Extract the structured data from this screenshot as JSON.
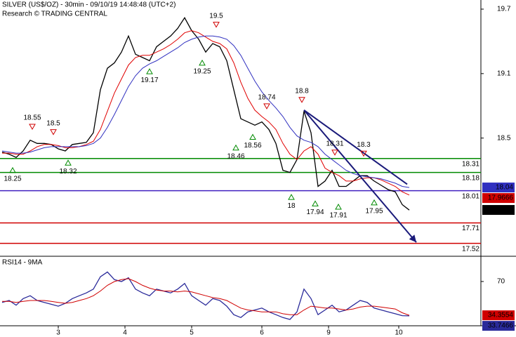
{
  "chart_data": [
    {
      "type": "line",
      "title": "SILVER (US$/OZ) - 30min - 09/10/19 14:48:48 (UTC+2)",
      "subtitle": "Research © TRADING CENTRAL",
      "xlim": [
        -0.6,
        136.4
      ],
      "ylim": [
        17.4,
        19.785
      ],
      "yticks": [
        18.5,
        19.1,
        19.7
      ],
      "x": [
        0,
        2,
        4,
        6,
        8,
        10,
        12,
        14,
        16,
        18,
        20,
        22,
        24,
        26,
        28,
        30,
        32,
        34,
        36,
        38,
        40,
        42,
        44,
        46,
        48,
        50,
        52,
        54,
        56,
        58,
        60,
        62,
        64,
        66,
        68,
        70,
        72,
        74,
        76,
        78,
        80,
        82,
        84,
        86,
        88,
        90,
        92,
        94,
        96,
        98,
        100,
        102,
        104,
        106,
        108,
        110,
        112,
        114,
        116
      ],
      "series": [
        {
          "color": "#000000",
          "values": [
            18.37,
            18.35,
            18.32,
            18.38,
            18.48,
            18.45,
            18.45,
            18.44,
            18.4,
            18.38,
            18.44,
            18.45,
            18.46,
            18.55,
            18.95,
            19.15,
            19.2,
            19.3,
            19.45,
            19.28,
            19.25,
            19.22,
            19.35,
            19.4,
            19.45,
            19.52,
            19.62,
            19.5,
            19.42,
            19.3,
            19.38,
            19.35,
            19.22,
            18.95,
            18.68,
            18.65,
            18.62,
            18.65,
            18.58,
            18.45,
            18.2,
            18.18,
            18.3,
            18.75,
            18.55,
            18.05,
            18.1,
            18.2,
            18.05,
            18.05,
            18.1,
            18.15,
            18.15,
            18.1,
            18.06,
            18.02,
            18.0,
            17.88,
            17.83
          ]
        },
        {
          "color": "#e00000",
          "values": [
            18.36,
            18.36,
            18.35,
            18.35,
            18.38,
            18.42,
            18.44,
            18.44,
            18.43,
            18.41,
            18.41,
            18.42,
            18.44,
            18.47,
            18.58,
            18.75,
            18.92,
            19.05,
            19.18,
            19.25,
            19.27,
            19.27,
            19.3,
            19.33,
            19.37,
            19.42,
            19.48,
            19.5,
            19.48,
            19.44,
            19.4,
            19.38,
            19.33,
            19.2,
            19.02,
            18.87,
            18.76,
            18.7,
            18.65,
            18.58,
            18.45,
            18.35,
            18.3,
            18.38,
            18.42,
            18.35,
            18.22,
            18.18,
            18.15,
            18.1,
            18.1,
            18.12,
            18.13,
            18.13,
            18.11,
            18.08,
            18.05,
            18.0,
            17.97
          ]
        },
        {
          "color": "#3030c0",
          "values": [
            18.38,
            18.37,
            18.36,
            18.36,
            18.37,
            18.39,
            18.41,
            18.42,
            18.42,
            18.42,
            18.42,
            18.42,
            18.43,
            18.45,
            18.5,
            18.6,
            18.72,
            18.85,
            18.98,
            19.08,
            19.15,
            19.19,
            19.22,
            19.26,
            19.3,
            19.34,
            19.39,
            19.42,
            19.44,
            19.45,
            19.45,
            19.44,
            19.42,
            19.36,
            19.27,
            19.15,
            19.03,
            18.93,
            18.85,
            18.78,
            18.7,
            18.6,
            18.52,
            18.48,
            18.46,
            18.42,
            18.35,
            18.3,
            18.25,
            18.2,
            18.17,
            18.15,
            18.14,
            18.13,
            18.12,
            18.1,
            18.08,
            18.05,
            18.04
          ]
        }
      ],
      "levels": [
        {
          "value": 18.31,
          "color": "#008a00"
        },
        {
          "value": 18.18,
          "color": "#008a00"
        },
        {
          "value": 18.01,
          "color": "#4020c0"
        },
        {
          "value": 17.71,
          "color": "#d00000"
        },
        {
          "value": 17.52,
          "color": "#d00000"
        }
      ],
      "price_boxes": [
        {
          "value": 18.04,
          "color": "#3030c0"
        },
        {
          "value": 17.9666,
          "color": "#d00000"
        },
        {
          "value": 17.831,
          "color": "#000000"
        }
      ],
      "annotations": [
        {
          "value": 18.25,
          "x": 3,
          "marker": "up"
        },
        {
          "value": 18.55,
          "x": 8.6,
          "marker": "down"
        },
        {
          "value": 18.5,
          "x": 14.6,
          "marker": "down"
        },
        {
          "value": 18.32,
          "x": 18.8,
          "marker": "up"
        },
        {
          "value": 19.17,
          "x": 42,
          "marker": "up"
        },
        {
          "value": 19.25,
          "x": 57,
          "marker": "up"
        },
        {
          "value": 19.5,
          "x": 61,
          "marker": "down"
        },
        {
          "value": 18.46,
          "x": 66.6,
          "marker": "up"
        },
        {
          "value": 18.56,
          "x": 71.4,
          "marker": "up"
        },
        {
          "value": 18.74,
          "x": 75.4,
          "marker": "down"
        },
        {
          "value": 18.8,
          "x": 85.4,
          "marker": "down"
        },
        {
          "value": 18.0,
          "x": 82.4,
          "marker": "up"
        },
        {
          "value": 17.94,
          "x": 89.2,
          "marker": "up"
        },
        {
          "value": 18.31,
          "x": 94.8,
          "marker": "down"
        },
        {
          "value": 17.91,
          "x": 95.8,
          "marker": "up"
        },
        {
          "value": 18.3,
          "x": 103,
          "marker": "down"
        },
        {
          "value": 17.95,
          "x": 106,
          "marker": "up"
        }
      ],
      "trendlines": [
        {
          "x": [
            86,
            118
          ],
          "values": [
            18.76,
            17.53
          ],
          "color": "#1a1a7a",
          "arrow": true
        },
        {
          "x": [
            86,
            115.4
          ],
          "values": [
            18.76,
            18.07
          ],
          "color": "#1a1a7a",
          "arrow": false
        }
      ]
    },
    {
      "type": "line",
      "title": "RSI14 - 9MA",
      "xlim": [
        -0.6,
        136.4
      ],
      "ylim": [
        24.8,
        94.4
      ],
      "yticks": [
        70
      ],
      "xticks": [
        {
          "value": 16,
          "label": "3"
        },
        {
          "value": 35,
          "label": "4"
        },
        {
          "value": 54,
          "label": "5"
        },
        {
          "value": 74,
          "label": "6"
        },
        {
          "value": 93,
          "label": "9"
        },
        {
          "value": 113,
          "label": "10"
        }
      ],
      "x": [
        0,
        2,
        4,
        6,
        8,
        10,
        12,
        14,
        16,
        18,
        20,
        22,
        24,
        26,
        28,
        30,
        32,
        34,
        36,
        38,
        40,
        42,
        44,
        46,
        48,
        50,
        52,
        54,
        56,
        58,
        60,
        62,
        64,
        66,
        68,
        70,
        72,
        74,
        76,
        78,
        80,
        82,
        84,
        86,
        88,
        90,
        92,
        94,
        96,
        98,
        100,
        102,
        104,
        106,
        108,
        110,
        112,
        114,
        116
      ],
      "series": [
        {
          "color": "#2a2a9a",
          "values": [
            48,
            50,
            45,
            52,
            55,
            50,
            48,
            46,
            44,
            47,
            52,
            55,
            58,
            62,
            75,
            80,
            72,
            70,
            74,
            62,
            58,
            55,
            62,
            60,
            58,
            62,
            68,
            55,
            50,
            45,
            52,
            50,
            44,
            35,
            32,
            38,
            40,
            42,
            38,
            35,
            32,
            30,
            38,
            62,
            52,
            35,
            40,
            45,
            38,
            40,
            45,
            50,
            48,
            42,
            40,
            38,
            36,
            34,
            33.75
          ]
        },
        {
          "color": "#d00000",
          "values": [
            49,
            49,
            48,
            49,
            50,
            50,
            50,
            49,
            48,
            47,
            48,
            50,
            52,
            55,
            60,
            66,
            70,
            72,
            73,
            70,
            66,
            63,
            61,
            60,
            60,
            59,
            60,
            59,
            57,
            55,
            53,
            52,
            50,
            46,
            42,
            40,
            39,
            38,
            38,
            38,
            36,
            35,
            35,
            40,
            44,
            43,
            42,
            42,
            41,
            40,
            41,
            43,
            44,
            44,
            43,
            42,
            41,
            37,
            34.36
          ]
        }
      ],
      "price_boxes": [
        {
          "value": 34.3554,
          "color": "#d00000"
        },
        {
          "value": 33.7466,
          "color": "#2a2a9a"
        }
      ]
    }
  ]
}
